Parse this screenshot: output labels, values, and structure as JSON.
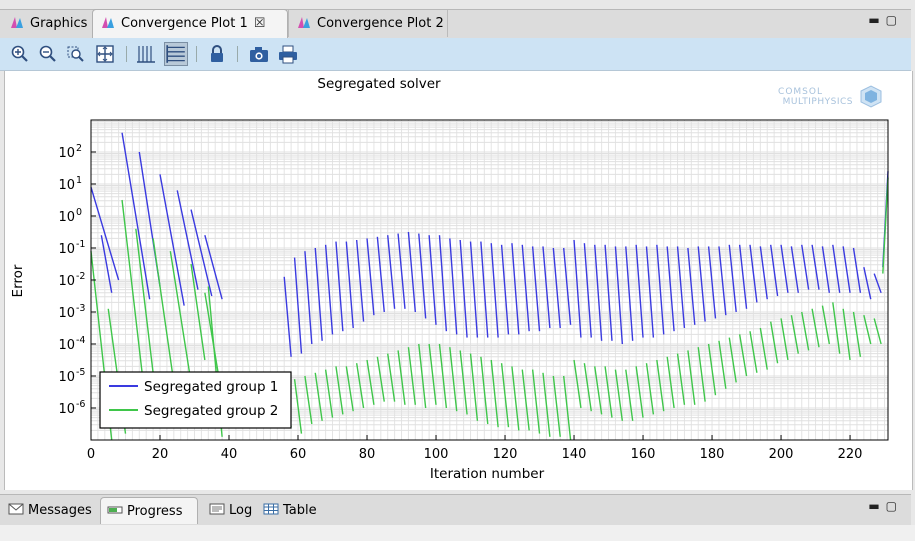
{
  "tabs": [
    {
      "label": "Graphics",
      "icon": "comsol-icon"
    },
    {
      "label": "Convergence Plot 1",
      "icon": "comsol-icon",
      "close": "☒"
    },
    {
      "label": "Convergence Plot 2",
      "icon": "comsol-icon"
    }
  ],
  "toolbar": [
    "zoom-in-icon",
    "zoom-out-icon",
    "zoom-box-icon",
    "zoom-extents-icon",
    "grid-x-icon",
    "grid-y-icon",
    "lock-icon",
    "camera-icon",
    "print-icon"
  ],
  "bottom_tabs": [
    {
      "label": "Messages",
      "icon": "envelope-icon"
    },
    {
      "label": "Progress",
      "icon": "progress-icon"
    },
    {
      "label": "Log",
      "icon": "log-icon"
    },
    {
      "label": "Table",
      "icon": "table-icon"
    }
  ],
  "logo": {
    "line1": "COMSOL",
    "line2": "MULTIPHYSICS"
  },
  "colors": {
    "group1": "#3a3ae0",
    "group2": "#3fc64a",
    "accent": "#cde3f4"
  },
  "chart_data": {
    "type": "line",
    "title": "Segregated solver",
    "xlabel": "Iteration number",
    "ylabel": "Error",
    "xlim": [
      0,
      231
    ],
    "ylim_log10": [
      -7,
      3
    ],
    "x_ticks": [
      "0",
      "20",
      "40",
      "60",
      "80",
      "100",
      "120",
      "140",
      "160",
      "180",
      "200",
      "220"
    ],
    "y_tick_exponents": [
      "2",
      "1",
      "0",
      "-1",
      "-2",
      "-3",
      "-4",
      "-5",
      "-6"
    ],
    "y_tick_base": "10",
    "grid": true,
    "legend_position": "bottom-left",
    "series": [
      {
        "name": "Segregated group 1",
        "color": "#3a3ae0"
      },
      {
        "name": "Segregated group 2",
        "color": "#3fc64a"
      }
    ],
    "segments_group1_startend": [
      [
        0,
        0.9,
        8,
        -2
      ],
      [
        3,
        -0.6,
        6,
        -2.4
      ],
      [
        9,
        2.6,
        17,
        -2.6
      ],
      [
        14,
        2,
        20,
        -2.2
      ],
      [
        20,
        1.3,
        27,
        -2.8
      ],
      [
        25,
        0.8,
        31,
        -2.3
      ],
      [
        29,
        0.2,
        35,
        -2.5
      ],
      [
        33,
        -0.6,
        38,
        -2.6
      ],
      [
        56,
        -1.9,
        58,
        -4.4
      ],
      [
        59,
        -1.3,
        61,
        -4.3
      ],
      [
        62,
        -1.1,
        64,
        -4.0
      ],
      [
        65,
        -1.0,
        67,
        -3.9
      ],
      [
        68,
        -0.9,
        70,
        -3.7
      ],
      [
        71,
        -0.8,
        73,
        -3.6
      ],
      [
        74,
        -0.8,
        76,
        -3.5
      ],
      [
        77,
        -0.75,
        79,
        -3.3
      ],
      [
        80,
        -0.7,
        82,
        -3.1
      ],
      [
        83,
        -0.65,
        85,
        -3.0
      ],
      [
        86,
        -0.6,
        88,
        -2.9
      ],
      [
        89,
        -0.55,
        91,
        -2.9
      ],
      [
        92,
        -0.5,
        94,
        -3.0
      ],
      [
        95,
        -0.55,
        97,
        -3.2
      ],
      [
        98,
        -0.6,
        100,
        -3.4
      ],
      [
        101,
        -0.6,
        103,
        -3.6
      ],
      [
        104,
        -0.7,
        106,
        -3.7
      ],
      [
        107,
        -0.75,
        109,
        -3.8
      ],
      [
        110,
        -0.8,
        112,
        -3.8
      ],
      [
        113,
        -0.8,
        115,
        -3.8
      ],
      [
        116,
        -0.85,
        118,
        -3.8
      ],
      [
        119,
        -0.9,
        121,
        -3.7
      ],
      [
        122,
        -0.85,
        124,
        -3.7
      ],
      [
        125,
        -0.9,
        127,
        -3.6
      ],
      [
        128,
        -0.95,
        130,
        -3.6
      ],
      [
        131,
        -0.95,
        133,
        -3.5
      ],
      [
        134,
        -1.0,
        136,
        -3.5
      ],
      [
        137,
        -1.0,
        139,
        -3.4
      ],
      [
        140,
        -0.75,
        142,
        -3.8
      ],
      [
        143,
        -0.85,
        145,
        -3.8
      ],
      [
        146,
        -0.9,
        148,
        -3.9
      ],
      [
        149,
        -0.9,
        151,
        -3.9
      ],
      [
        152,
        -0.95,
        154,
        -4.0
      ],
      [
        155,
        -0.95,
        157,
        -3.9
      ],
      [
        158,
        -0.9,
        160,
        -3.8
      ],
      [
        161,
        -0.95,
        163,
        -3.8
      ],
      [
        164,
        -0.9,
        166,
        -3.7
      ],
      [
        167,
        -0.95,
        169,
        -3.6
      ],
      [
        170,
        -0.95,
        172,
        -3.5
      ],
      [
        173,
        -1.0,
        175,
        -3.4
      ],
      [
        176,
        -0.95,
        178,
        -3.3
      ],
      [
        179,
        -0.95,
        181,
        -3.2
      ],
      [
        182,
        -0.95,
        184,
        -3.1
      ],
      [
        185,
        -0.9,
        187,
        -3.0
      ],
      [
        188,
        -0.9,
        190,
        -2.9
      ],
      [
        191,
        -0.9,
        193,
        -2.7
      ],
      [
        194,
        -0.95,
        196,
        -2.6
      ],
      [
        197,
        -0.9,
        199,
        -2.5
      ],
      [
        200,
        -0.9,
        202,
        -2.4
      ],
      [
        203,
        -0.95,
        205,
        -2.4
      ],
      [
        206,
        -0.9,
        208,
        -2.3
      ],
      [
        209,
        -0.9,
        211,
        -2.3
      ],
      [
        212,
        -0.95,
        214,
        -2.4
      ],
      [
        215,
        -0.9,
        217,
        -2.4
      ],
      [
        218,
        -0.95,
        220,
        -2.4
      ],
      [
        221,
        -1.0,
        223,
        -2.4
      ],
      [
        224,
        -1.6,
        226,
        -2.6
      ],
      [
        227,
        -1.8,
        229,
        -2.4
      ],
      [
        229.5,
        -1.6,
        231,
        1.4
      ]
    ],
    "segments_group2_startend": [
      [
        0,
        -1.1,
        6,
        -7.0
      ],
      [
        5,
        -2.9,
        10,
        -6.8
      ],
      [
        9,
        0.5,
        16,
        -6.0
      ],
      [
        13,
        -0.4,
        19,
        -5.8
      ],
      [
        18,
        -0.7,
        24,
        -5.2
      ],
      [
        23,
        -1.1,
        29,
        -5.2
      ],
      [
        29,
        -1.5,
        33,
        -4.5
      ],
      [
        33,
        -2.4,
        37,
        -5.0
      ],
      [
        34,
        -2.2,
        38,
        -6.9
      ],
      [
        56,
        -5.2,
        58,
        -6.6
      ],
      [
        59,
        -5.1,
        61,
        -6.8
      ],
      [
        62,
        -5.0,
        64,
        -6.5
      ],
      [
        65,
        -4.9,
        67,
        -6.4
      ],
      [
        68,
        -4.8,
        70,
        -6.3
      ],
      [
        71,
        -4.7,
        73,
        -6.2
      ],
      [
        74,
        -4.7,
        76,
        -6.1
      ],
      [
        77,
        -4.6,
        79,
        -6.0
      ],
      [
        80,
        -4.5,
        82,
        -5.9
      ],
      [
        83,
        -4.4,
        85,
        -5.8
      ],
      [
        86,
        -4.3,
        88,
        -5.8
      ],
      [
        89,
        -4.2,
        91,
        -5.9
      ],
      [
        92,
        -4.1,
        94,
        -5.9
      ],
      [
        95,
        -4.0,
        97,
        -6.0
      ],
      [
        98,
        -4.0,
        100,
        -5.9
      ],
      [
        101,
        -4.0,
        103,
        -6.0
      ],
      [
        104,
        -4.1,
        106,
        -6.1
      ],
      [
        107,
        -4.2,
        109,
        -6.2
      ],
      [
        110,
        -4.3,
        112,
        -6.4
      ],
      [
        113,
        -4.4,
        115,
        -6.5
      ],
      [
        116,
        -4.5,
        118,
        -6.6
      ],
      [
        119,
        -4.6,
        121,
        -6.6
      ],
      [
        122,
        -4.7,
        124,
        -6.7
      ],
      [
        125,
        -4.8,
        127,
        -6.7
      ],
      [
        128,
        -4.8,
        130,
        -6.8
      ],
      [
        131,
        -4.9,
        133,
        -6.9
      ],
      [
        134,
        -5.0,
        136,
        -6.9
      ],
      [
        137,
        -5.0,
        139,
        -7.0
      ],
      [
        140,
        -4.5,
        142,
        -6.0
      ],
      [
        143,
        -4.6,
        145,
        -6.1
      ],
      [
        146,
        -4.7,
        148,
        -6.2
      ],
      [
        149,
        -4.7,
        151,
        -6.3
      ],
      [
        152,
        -4.8,
        154,
        -6.4
      ],
      [
        155,
        -4.8,
        157,
        -6.4
      ],
      [
        158,
        -4.7,
        160,
        -6.3
      ],
      [
        161,
        -4.6,
        163,
        -6.2
      ],
      [
        164,
        -4.5,
        166,
        -6.1
      ],
      [
        167,
        -4.4,
        169,
        -6.0
      ],
      [
        170,
        -4.3,
        172,
        -5.9
      ],
      [
        173,
        -4.2,
        175,
        -5.9
      ],
      [
        176,
        -4.1,
        178,
        -5.8
      ],
      [
        179,
        -4.0,
        181,
        -5.6
      ],
      [
        182,
        -3.9,
        184,
        -5.4
      ],
      [
        185,
        -3.8,
        187,
        -5.2
      ],
      [
        188,
        -3.7,
        190,
        -5.0
      ],
      [
        191,
        -3.6,
        193,
        -4.9
      ],
      [
        194,
        -3.5,
        196,
        -4.8
      ],
      [
        197,
        -3.3,
        199,
        -4.6
      ],
      [
        200,
        -3.2,
        202,
        -4.5
      ],
      [
        203,
        -3.1,
        205,
        -4.3
      ],
      [
        206,
        -3.0,
        208,
        -4.2
      ],
      [
        209,
        -2.9,
        211,
        -4.1
      ],
      [
        212,
        -2.8,
        214,
        -4.0
      ],
      [
        215,
        -2.7,
        217,
        -4.3
      ],
      [
        218,
        -2.9,
        220,
        -4.5
      ],
      [
        221,
        -3.0,
        223,
        -4.4
      ],
      [
        224,
        -3.1,
        226,
        -4.0
      ],
      [
        227,
        -3.2,
        229,
        -4.0
      ],
      [
        229.5,
        -1.8,
        231,
        1.2
      ]
    ]
  }
}
